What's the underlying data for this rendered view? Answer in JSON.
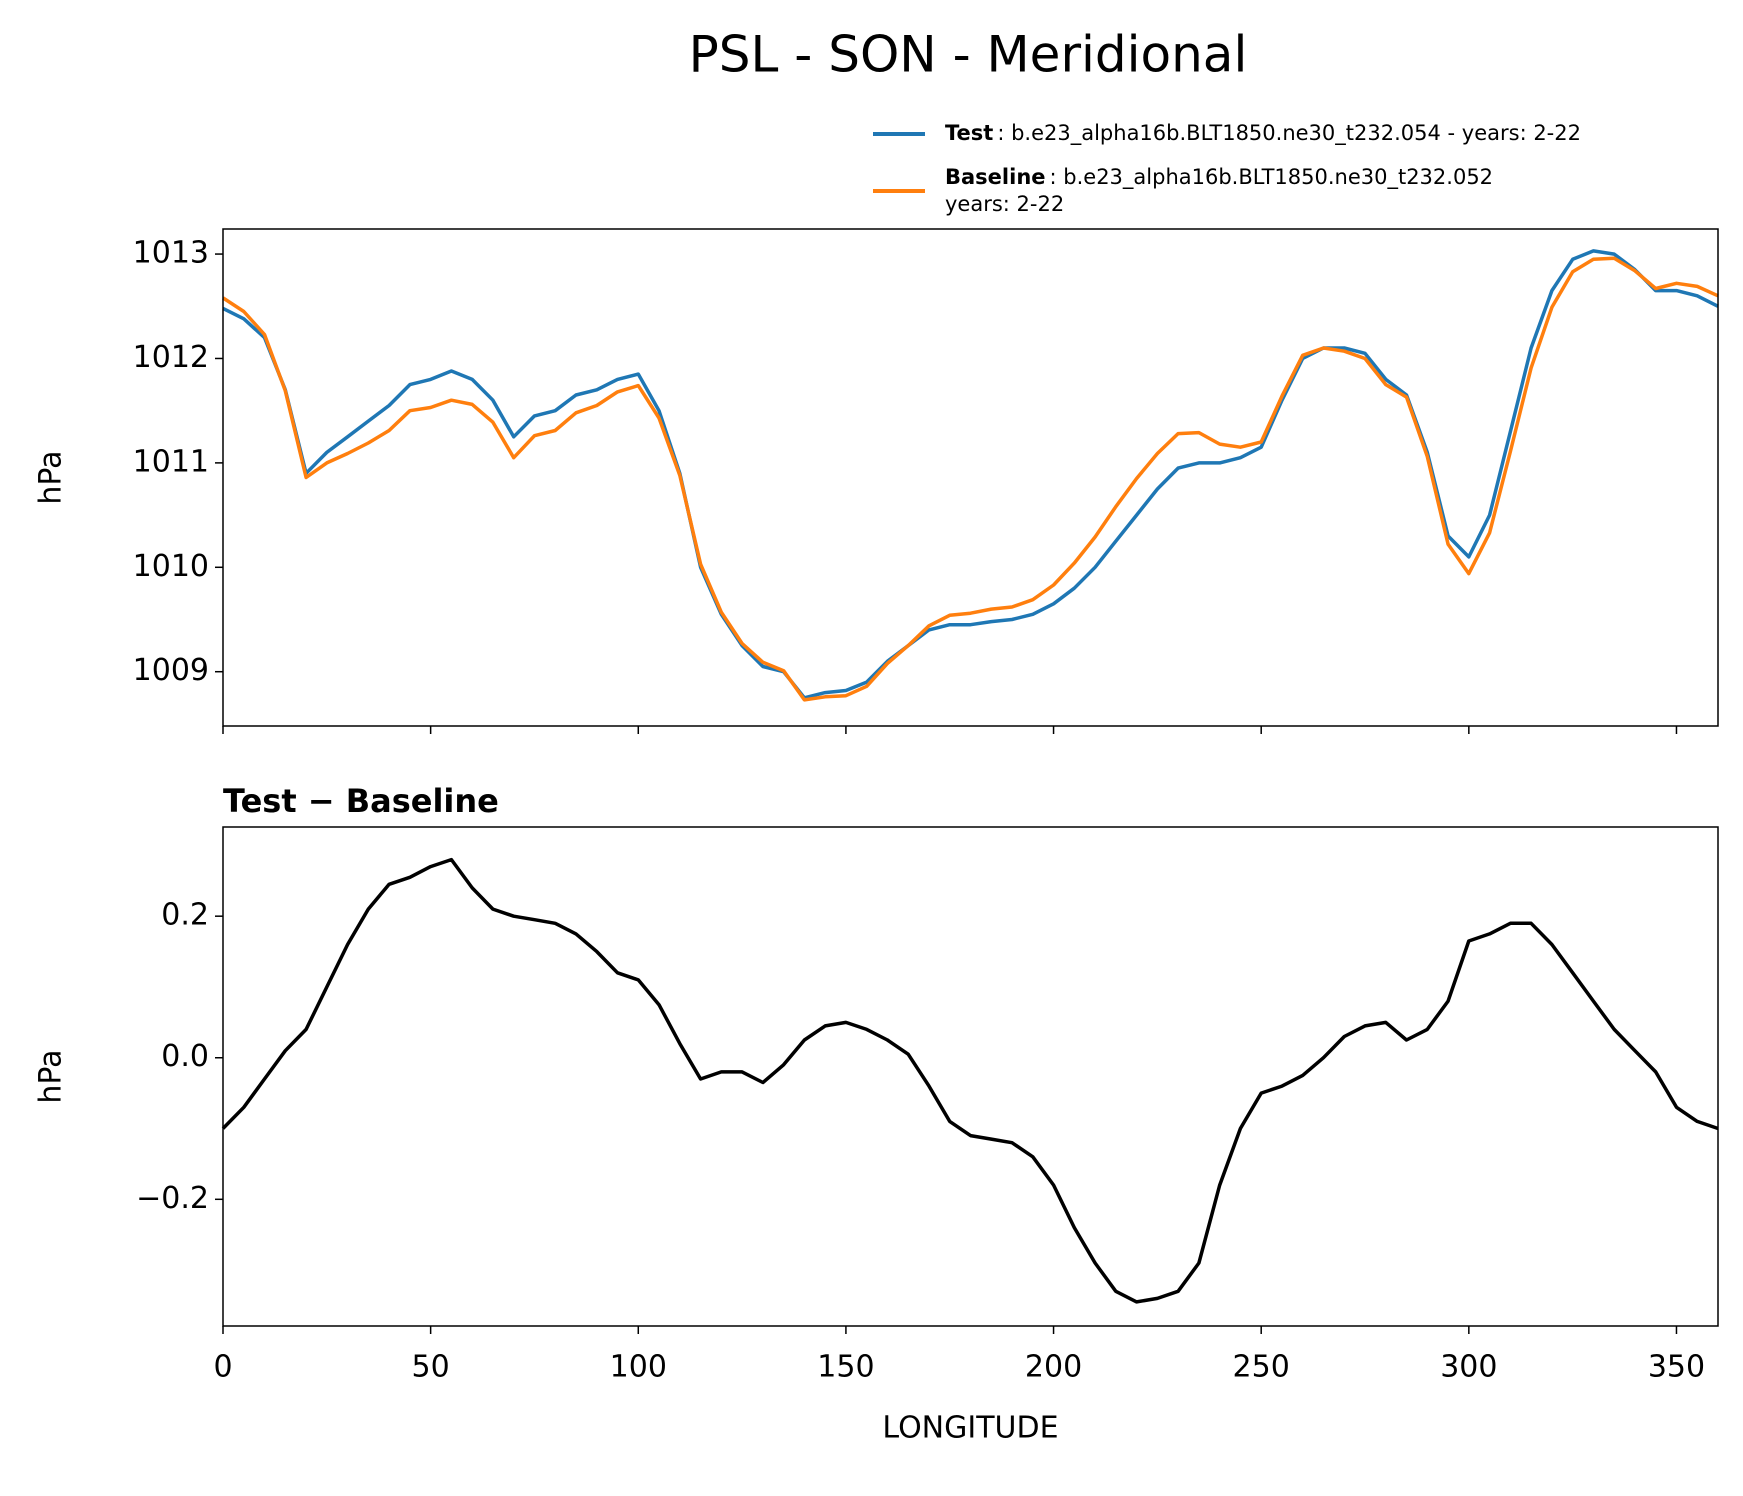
{
  "chart_data": [
    {
      "type": "line",
      "title": "PSL - SON - Meridional",
      "ylabel": "hPa",
      "x": [
        0,
        5,
        10,
        15,
        20,
        25,
        30,
        35,
        40,
        45,
        50,
        55,
        60,
        65,
        70,
        75,
        80,
        85,
        90,
        95,
        100,
        105,
        110,
        115,
        120,
        125,
        130,
        135,
        140,
        145,
        150,
        155,
        160,
        165,
        170,
        175,
        180,
        185,
        190,
        195,
        200,
        205,
        210,
        215,
        220,
        225,
        230,
        235,
        240,
        245,
        250,
        255,
        260,
        265,
        270,
        275,
        280,
        285,
        290,
        295,
        300,
        305,
        310,
        315,
        320,
        325,
        330,
        335,
        340,
        345,
        350,
        355,
        360
      ],
      "series": [
        {
          "name": "Test",
          "description": [
            ": b.e23_alpha16b.BLT1850.ne30_t232.054 - years: 2-22"
          ],
          "color": "#1f77b4",
          "values": [
            1012.48,
            1012.38,
            1012.2,
            1011.7,
            1010.9,
            1011.1,
            1011.25,
            1011.4,
            1011.55,
            1011.75,
            1011.8,
            1011.88,
            1011.8,
            1011.6,
            1011.25,
            1011.45,
            1011.5,
            1011.65,
            1011.7,
            1011.8,
            1011.85,
            1011.5,
            1010.9,
            1010.0,
            1009.55,
            1009.25,
            1009.05,
            1009.0,
            1008.75,
            1008.8,
            1008.82,
            1008.9,
            1009.1,
            1009.25,
            1009.4,
            1009.45,
            1009.45,
            1009.48,
            1009.5,
            1009.55,
            1009.65,
            1009.8,
            1010.0,
            1010.25,
            1010.5,
            1010.75,
            1010.95,
            1011.0,
            1011.0,
            1011.05,
            1011.15,
            1011.6,
            1012.0,
            1012.1,
            1012.1,
            1012.05,
            1011.8,
            1011.65,
            1011.1,
            1010.3,
            1010.1,
            1010.5,
            1011.3,
            1012.1,
            1012.65,
            1012.95,
            1013.03,
            1013.0,
            1012.85,
            1012.65,
            1012.65,
            1012.6,
            1012.5
          ]
        },
        {
          "name": "Baseline",
          "description": [
            ": b.e23_alpha16b.BLT1850.ne30_t232.052",
            "years: 2-22"
          ],
          "color": "#ff7f0e",
          "values": [
            1012.58,
            1012.45,
            1012.23,
            1011.69,
            1010.86,
            1011.0,
            1011.09,
            1011.19,
            1011.31,
            1011.5,
            1011.53,
            1011.6,
            1011.56,
            1011.39,
            1011.05,
            1011.26,
            1011.31,
            1011.48,
            1011.55,
            1011.68,
            1011.74,
            1011.43,
            1010.88,
            1010.03,
            1009.57,
            1009.27,
            1009.09,
            1009.01,
            1008.73,
            1008.76,
            1008.77,
            1008.86,
            1009.08,
            1009.25,
            1009.44,
            1009.54,
            1009.56,
            1009.6,
            1009.62,
            1009.69,
            1009.83,
            1010.04,
            1010.29,
            1010.58,
            1010.85,
            1011.09,
            1011.28,
            1011.29,
            1011.18,
            1011.15,
            1011.2,
            1011.64,
            1012.03,
            1012.1,
            1012.07,
            1012.0,
            1011.75,
            1011.63,
            1011.06,
            1010.22,
            1009.94,
            1010.33,
            1011.11,
            1011.91,
            1012.49,
            1012.83,
            1012.95,
            1012.96,
            1012.84,
            1012.67,
            1012.72,
            1012.69,
            1012.6
          ]
        }
      ],
      "xlim": [
        0,
        360
      ],
      "xticks": [
        0,
        50,
        100,
        150,
        200,
        250,
        300,
        350
      ],
      "ylim": [
        1008.48,
        1013.24
      ],
      "yticks": [
        1009,
        1010,
        1011,
        1012,
        1013
      ]
    },
    {
      "type": "line",
      "title": "Test − Baseline",
      "ylabel": "hPa",
      "xlabel": "LONGITUDE",
      "x": [
        0,
        5,
        10,
        15,
        20,
        25,
        30,
        35,
        40,
        45,
        50,
        55,
        60,
        65,
        70,
        75,
        80,
        85,
        90,
        95,
        100,
        105,
        110,
        115,
        120,
        125,
        130,
        135,
        140,
        145,
        150,
        155,
        160,
        165,
        170,
        175,
        180,
        185,
        190,
        195,
        200,
        205,
        210,
        215,
        220,
        225,
        230,
        235,
        240,
        245,
        250,
        255,
        260,
        265,
        270,
        275,
        280,
        285,
        290,
        295,
        300,
        305,
        310,
        315,
        320,
        325,
        330,
        335,
        340,
        345,
        350,
        355,
        360
      ],
      "series": [
        {
          "color": "#000000",
          "values": [
            -0.1,
            -0.07,
            -0.03,
            0.01,
            0.04,
            0.1,
            0.16,
            0.21,
            0.245,
            0.255,
            0.27,
            0.28,
            0.24,
            0.21,
            0.2,
            0.195,
            0.19,
            0.175,
            0.15,
            0.12,
            0.11,
            0.075,
            0.02,
            -0.03,
            -0.02,
            -0.02,
            -0.035,
            -0.01,
            0.025,
            0.045,
            0.05,
            0.04,
            0.025,
            0.005,
            -0.04,
            -0.09,
            -0.11,
            -0.115,
            -0.12,
            -0.14,
            -0.18,
            -0.24,
            -0.29,
            -0.33,
            -0.345,
            -0.34,
            -0.33,
            -0.29,
            -0.18,
            -0.1,
            -0.05,
            -0.04,
            -0.025,
            0.0,
            0.03,
            0.045,
            0.05,
            0.025,
            0.04,
            0.08,
            0.165,
            0.175,
            0.19,
            0.19,
            0.16,
            0.12,
            0.08,
            0.04,
            0.01,
            -0.02,
            -0.07,
            -0.09,
            -0.1
          ]
        }
      ],
      "xlim": [
        0,
        360
      ],
      "xticks": [
        0,
        50,
        100,
        150,
        200,
        250,
        300,
        350
      ],
      "ylim": [
        -0.379,
        0.326
      ],
      "yticks": [
        {
          "value": -0.2,
          "label": "−0.2"
        },
        {
          "value": 0,
          "label": "0.0"
        },
        {
          "value": 0.2,
          "label": "0.2"
        }
      ]
    }
  ]
}
